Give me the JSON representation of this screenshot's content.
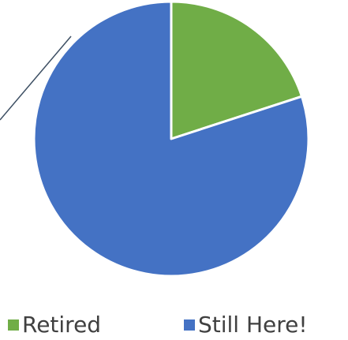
{
  "chart_data": {
    "type": "pie",
    "categories": [
      "Retired",
      "Still Here!"
    ],
    "values": [
      20,
      80
    ],
    "colors": [
      "#70ad47",
      "#4472c4"
    ],
    "legend": "bottom"
  }
}
